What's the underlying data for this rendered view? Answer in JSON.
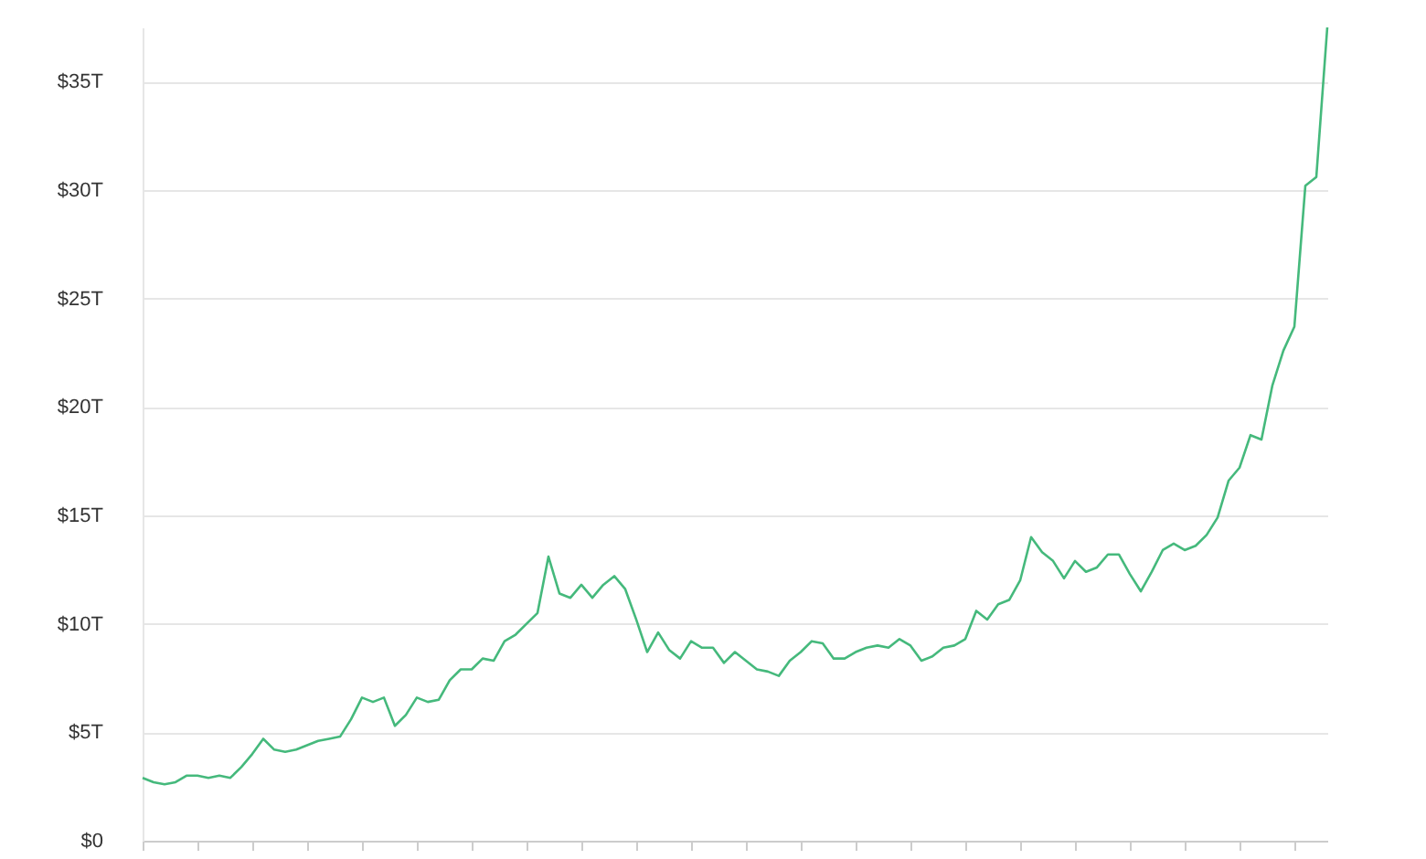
{
  "chart_data": {
    "type": "line",
    "categories": [
      null,
      null,
      null,
      null,
      null,
      null,
      null,
      null,
      null,
      null,
      null,
      null,
      null,
      null,
      null,
      null,
      null,
      null,
      null,
      null,
      null,
      null,
      null,
      null,
      null,
      null,
      null,
      null,
      null,
      null,
      null,
      null,
      null,
      null,
      null,
      null,
      null,
      null,
      null,
      null,
      null,
      null,
      null,
      null,
      null,
      null,
      null,
      null,
      null,
      null,
      null,
      null,
      null,
      null,
      null,
      null,
      null,
      null,
      null,
      null,
      null,
      null,
      null,
      null,
      null,
      null,
      null,
      null,
      null,
      null,
      null,
      null,
      null,
      null,
      null,
      null,
      null,
      null,
      null,
      null,
      null,
      null,
      null,
      null,
      null,
      null,
      null,
      null,
      null,
      null,
      null,
      null,
      null,
      null,
      null,
      null,
      null,
      null,
      null,
      null,
      null,
      null,
      null,
      null,
      null,
      null,
      null,
      null,
      null
    ],
    "series": [
      {
        "color": "#45b97c",
        "values": [
          2.9,
          2.7,
          2.6,
          2.7,
          3.0,
          3.0,
          2.9,
          3.0,
          2.9,
          3.4,
          4.0,
          4.7,
          4.2,
          4.1,
          4.2,
          4.4,
          4.6,
          4.7,
          4.8,
          5.6,
          6.6,
          6.4,
          6.6,
          5.3,
          5.8,
          6.6,
          6.4,
          6.5,
          7.4,
          7.9,
          7.9,
          8.4,
          8.3,
          9.2,
          9.5,
          10.0,
          10.5,
          13.1,
          11.4,
          11.2,
          11.8,
          11.2,
          11.8,
          12.2,
          11.6,
          10.2,
          8.7,
          9.6,
          8.8,
          8.4,
          9.2,
          8.9,
          8.9,
          8.2,
          8.7,
          8.3,
          7.9,
          7.8,
          7.6,
          8.3,
          8.7,
          9.2,
          9.1,
          8.4,
          8.4,
          8.7,
          8.9,
          9.0,
          8.9,
          9.3,
          9.0,
          8.3,
          8.5,
          8.9,
          9.0,
          9.3,
          10.6,
          10.2,
          10.9,
          11.1,
          12.0,
          14.0,
          13.3,
          12.9,
          12.1,
          12.9,
          12.4,
          12.6,
          13.2,
          13.2,
          12.3,
          11.5,
          12.4,
          13.4,
          13.7,
          13.4,
          13.6,
          14.1,
          14.9,
          16.6,
          17.2,
          18.7,
          18.5,
          21.0,
          22.6,
          23.7,
          30.2,
          30.6,
          37.5
        ]
      }
    ],
    "ylim": [
      0,
      37.5
    ],
    "yticks": [
      {
        "value": 0,
        "label": "$0"
      },
      {
        "value": 5,
        "label": "$5T"
      },
      {
        "value": 10,
        "label": "$10T"
      },
      {
        "value": 15,
        "label": "$15T"
      },
      {
        "value": 20,
        "label": "$20T"
      },
      {
        "value": 25,
        "label": "$25T"
      },
      {
        "value": 30,
        "label": "$30T"
      },
      {
        "value": 35,
        "label": "$35T"
      }
    ],
    "grid": "y",
    "marker": "none",
    "line_style": "solid"
  }
}
